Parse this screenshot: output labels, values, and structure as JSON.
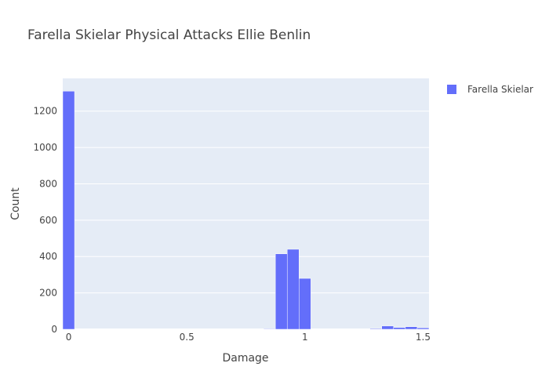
{
  "chart_data": {
    "type": "bar",
    "title": "Farella Skielar Physical Attacks Ellie Benlin",
    "xlabel": "Damage",
    "ylabel": "Count",
    "xlim": [
      -0.025,
      1.525
    ],
    "ylim": [
      0,
      1380
    ],
    "bin_width": 0.05,
    "x_ticks": [
      0,
      0.5,
      1,
      1.5
    ],
    "x_tick_labels": [
      "0",
      "0.5",
      "1",
      "1.5"
    ],
    "y_ticks": [
      0,
      200,
      400,
      600,
      800,
      1000,
      1200
    ],
    "y_tick_labels": [
      "0",
      "200",
      "400",
      "600",
      "800",
      "1000",
      "1200"
    ],
    "grid": true,
    "legend_position": "top-right",
    "series": [
      {
        "name": "Farella Skielar",
        "color": "#636efa",
        "bins": [
          {
            "x0": -0.025,
            "x1": 0.025,
            "count": 1310
          },
          {
            "x0": 0.825,
            "x1": 0.875,
            "count": 3
          },
          {
            "x0": 0.875,
            "x1": 0.925,
            "count": 415
          },
          {
            "x0": 0.925,
            "x1": 0.975,
            "count": 440
          },
          {
            "x0": 0.975,
            "x1": 1.025,
            "count": 280
          },
          {
            "x0": 1.275,
            "x1": 1.325,
            "count": 4
          },
          {
            "x0": 1.325,
            "x1": 1.375,
            "count": 18
          },
          {
            "x0": 1.375,
            "x1": 1.425,
            "count": 10
          },
          {
            "x0": 1.425,
            "x1": 1.475,
            "count": 14
          },
          {
            "x0": 1.475,
            "x1": 1.525,
            "count": 8
          }
        ]
      }
    ]
  }
}
